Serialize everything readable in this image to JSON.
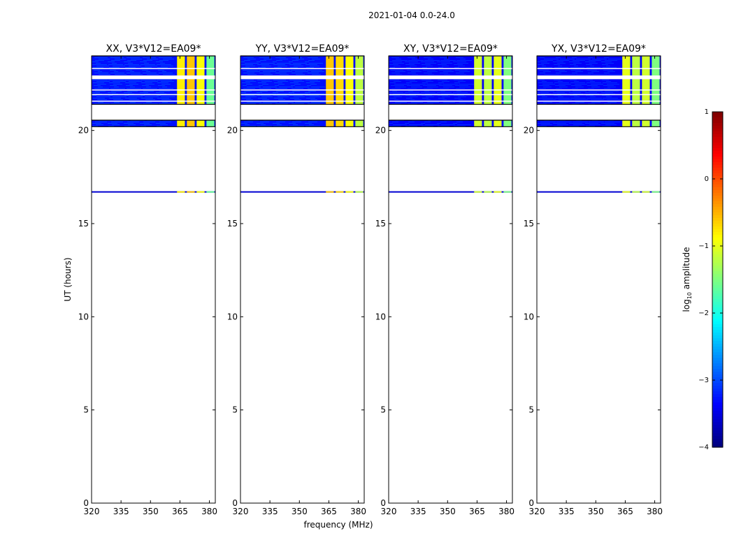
{
  "suptitle": "2021-01-04 0.0-24.0",
  "chart_data": {
    "type": "heatmap",
    "xlabel": "frequency (MHz)",
    "ylabel": "UT (hours)",
    "xlim": [
      320,
      383
    ],
    "ylim": [
      0,
      24
    ],
    "xticks": [
      320,
      335,
      350,
      365,
      380
    ],
    "yticks": [
      0,
      5,
      10,
      15,
      20
    ],
    "time_blocks_hours": [
      [
        20.2,
        20.55
      ],
      [
        21.4,
        24.0
      ]
    ],
    "time_gaps_hours": [
      [
        22.75,
        22.95
      ],
      [
        23.3,
        23.35
      ],
      [
        21.9,
        21.95
      ],
      [
        22.15,
        22.2
      ],
      [
        21.55,
        21.6
      ]
    ],
    "single_scan_hour": 16.7,
    "rfi_channels_mhz": [
      [
        363.5,
        367.5
      ],
      [
        368.5,
        372.5
      ],
      [
        373.5,
        377.5
      ],
      [
        378.5,
        382.5
      ]
    ],
    "panels": [
      {
        "title": "XX, V3*V12=EA09*",
        "background_log_amp": -3.3,
        "rfi_log_amp": [
          -0.8,
          -0.6,
          -0.9,
          -1.6
        ]
      },
      {
        "title": "YY, V3*V12=EA09*",
        "background_log_amp": -3.3,
        "rfi_log_amp": [
          -0.6,
          -0.7,
          -0.9,
          -1.2
        ]
      },
      {
        "title": "XY, V3*V12=EA09*",
        "background_log_amp": -3.4,
        "rfi_log_amp": [
          -1.1,
          -1.2,
          -1.0,
          -1.5
        ]
      },
      {
        "title": "YX, V3*V12=EA09*",
        "background_log_amp": -3.4,
        "rfi_log_amp": [
          -1.0,
          -1.2,
          -1.1,
          -1.5
        ]
      }
    ],
    "colorbar": {
      "label": "log",
      "label_subscript": "10",
      "label_suffix": " amplitude",
      "range": [
        -4,
        1
      ],
      "ticks": [
        "1",
        "0",
        "−1",
        "−2",
        "−3",
        "−4"
      ],
      "colormap": "jet"
    }
  }
}
